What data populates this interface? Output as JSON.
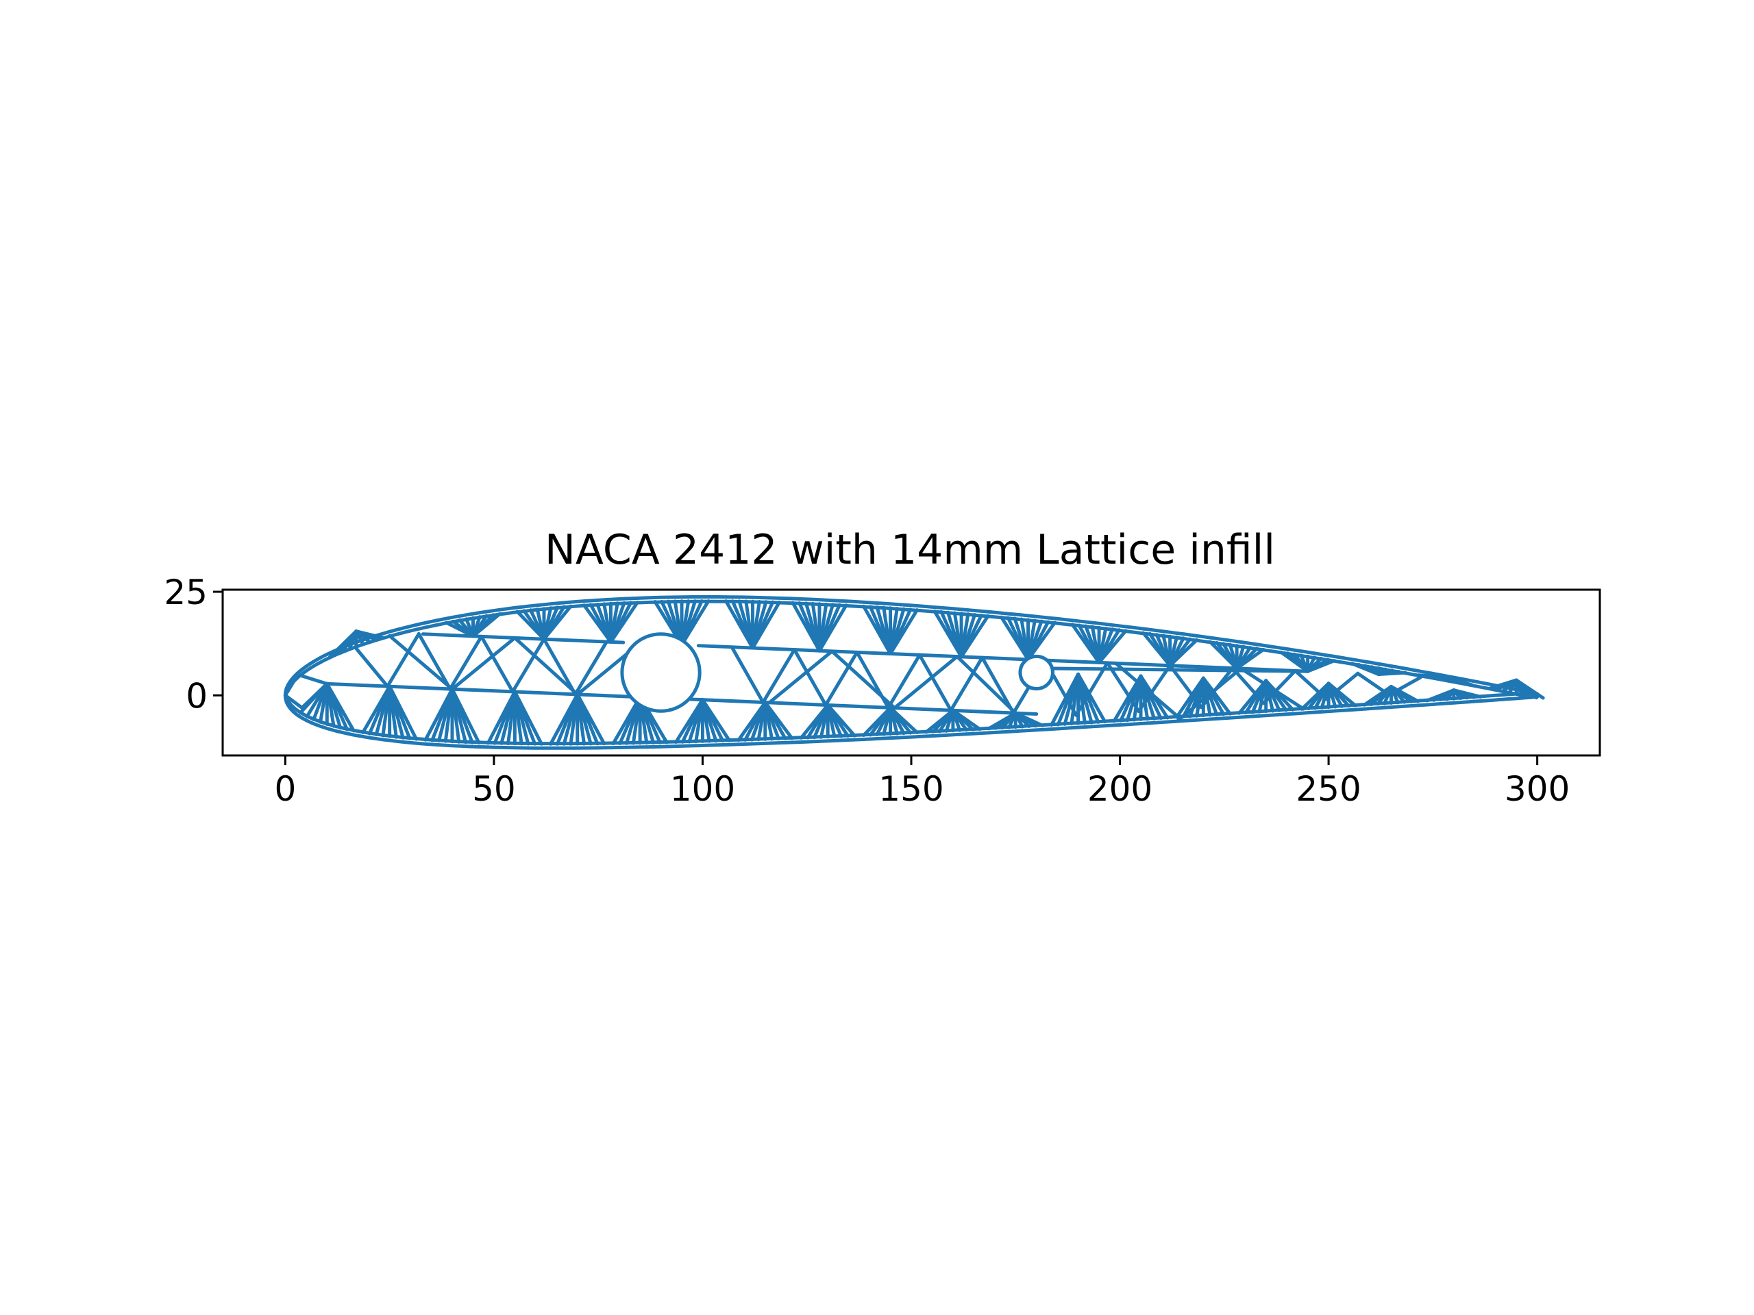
{
  "chart_data": {
    "type": "line",
    "title": "NACA 2412 with 14mm Lattice infill",
    "xlabel": "",
    "ylabel": "",
    "xlim": [
      -15,
      315
    ],
    "ylim": [
      -14.5,
      25.5
    ],
    "x_ticks": [
      {
        "value": 0,
        "label": "0"
      },
      {
        "value": 50,
        "label": "50"
      },
      {
        "value": 100,
        "label": "100"
      },
      {
        "value": 150,
        "label": "150"
      },
      {
        "value": 200,
        "label": "200"
      },
      {
        "value": 250,
        "label": "250"
      },
      {
        "value": 300,
        "label": "300"
      }
    ],
    "y_ticks": [
      {
        "value": 0,
        "label": "0"
      },
      {
        "value": 25,
        "label": "25"
      }
    ],
    "grid": false,
    "legend": "none",
    "series": [
      {
        "color": "#1f77b4",
        "chord": 300,
        "airfoil": "NACA 2412",
        "lattice_cell_mm": 14,
        "holes": [
          {
            "x": 90,
            "y": 5.5,
            "r": 9.3
          },
          {
            "x": 180,
            "y": 5.5,
            "r": 3.9
          }
        ],
        "upper_lattice_rail": [
          [
            33,
            14.8
          ],
          [
            245,
            5.8
          ]
        ],
        "lower_lattice_rail": [
          [
            10,
            2.8
          ],
          [
            180,
            -4.5
          ]
        ],
        "upper_nodes_x": [
          17,
          45,
          62,
          78,
          95,
          112,
          128,
          145,
          162,
          178,
          195,
          212,
          228,
          245,
          262,
          278,
          295
        ],
        "mid_nodes_x": [
          25,
          40,
          55,
          70,
          85,
          116,
          131,
          146,
          161,
          175,
          199,
          214,
          229,
          244
        ],
        "lower_nodes_x": [
          10,
          25,
          40,
          55,
          70,
          85,
          100,
          115,
          130,
          145,
          160,
          175,
          190,
          205,
          220,
          235,
          250,
          265,
          280
        ]
      }
    ]
  }
}
